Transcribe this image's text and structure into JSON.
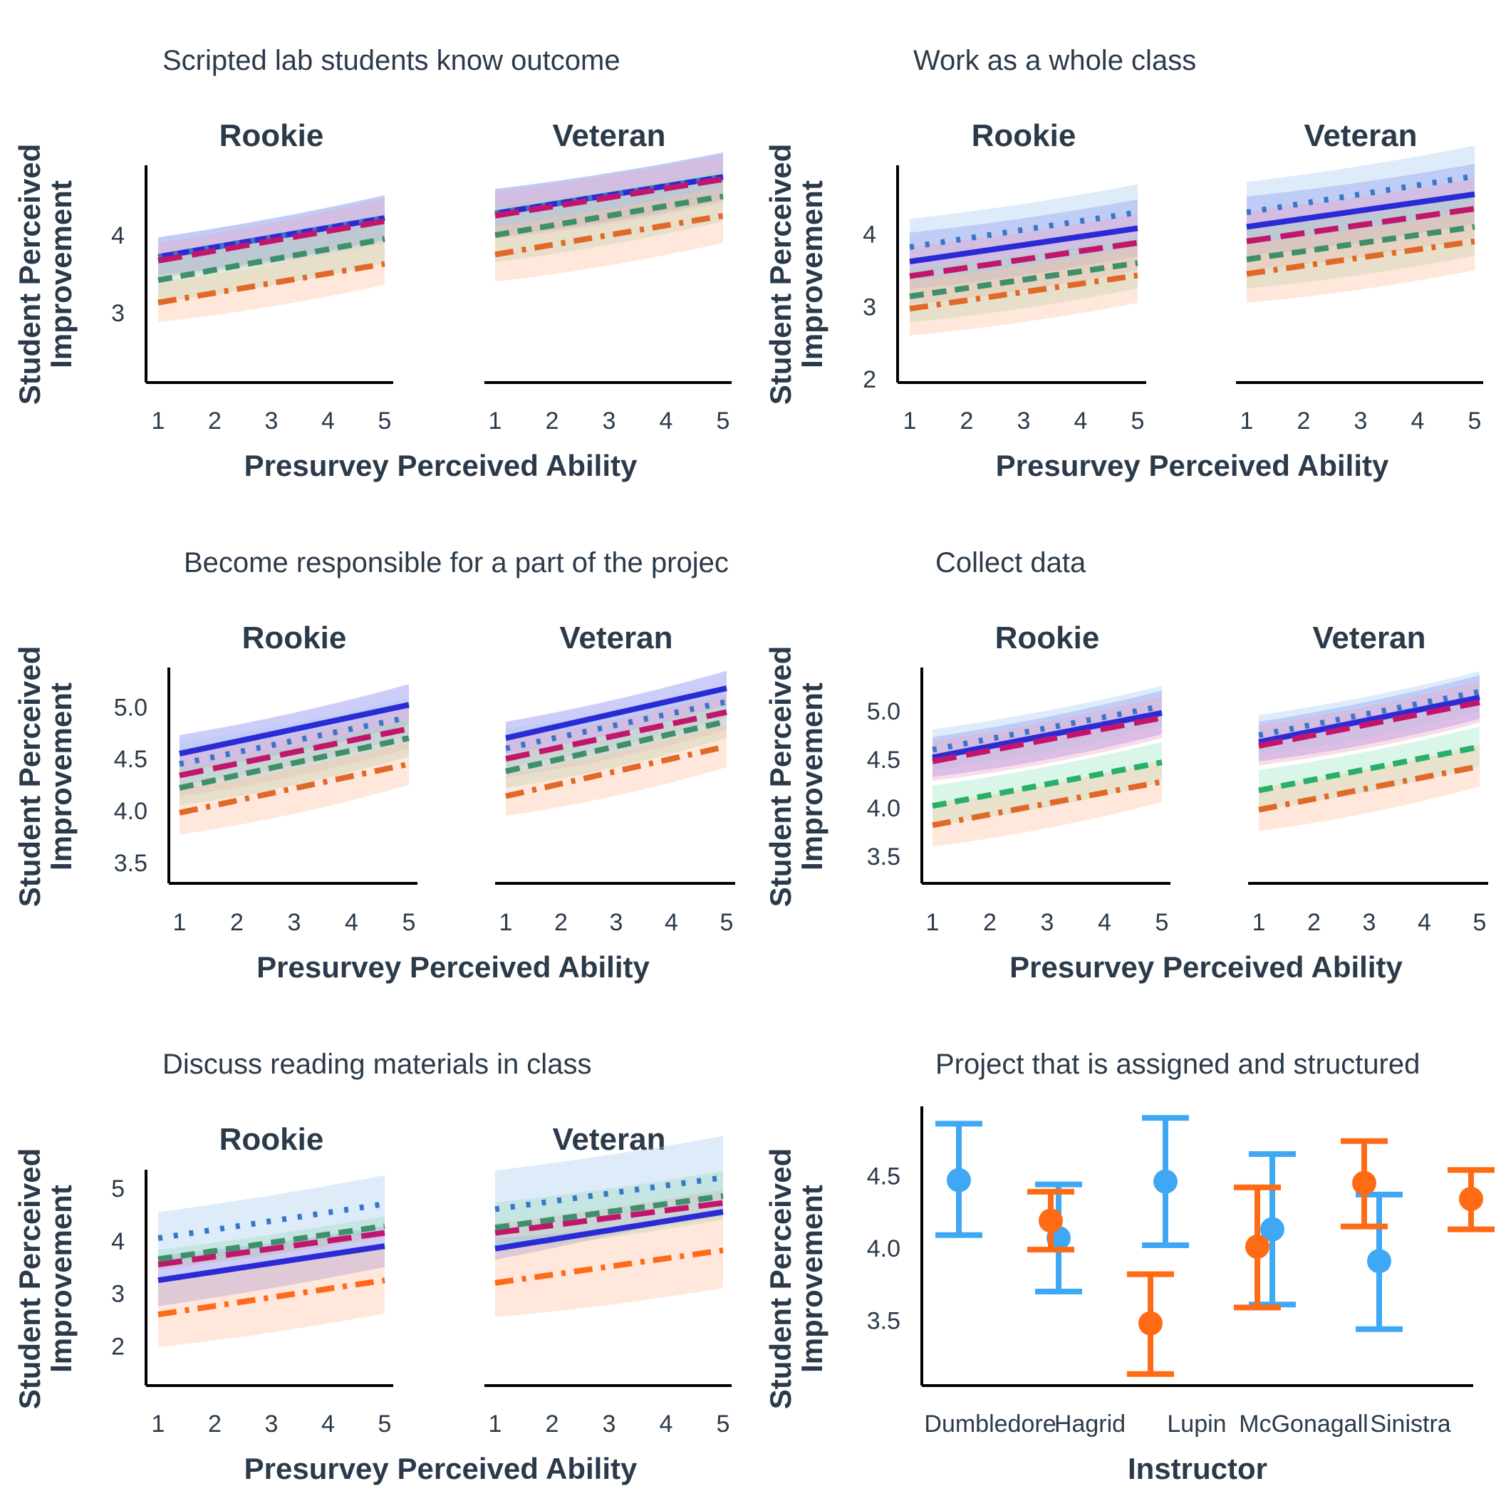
{
  "chart_data": [
    {
      "type": "line",
      "title": "Scripted lab students know outcome",
      "facets": [
        "Rookie",
        "Veteran"
      ],
      "xlabel": "Presurvey Perceived Ability",
      "ylabel": [
        "Student Perceived",
        "Improvement"
      ],
      "x_ticks": [
        1,
        2,
        3,
        4,
        5
      ],
      "y_ticks": [
        3,
        4
      ],
      "ylim": [
        2.1,
        4.9
      ],
      "series": [
        {
          "style": "solid",
          "color": "#2b2bd6",
          "band": "#7b7bf0",
          "panels": [
            [
              3.72,
              4.22,
              3.48,
              3.94,
              4.28,
              4.75,
              3.98,
              4.45
            ]
          ]
        },
        {
          "style": "dotted",
          "color": "#3a76c8",
          "band": "#a9cdf2",
          "panels": [
            [
              3.72,
              4.22,
              3.48,
              3.94,
              4.28,
              4.75,
              3.98,
              4.45
            ]
          ]
        },
        {
          "style": "longdash",
          "color": "#c2166d",
          "band": "#f2a3c6",
          "panels": [
            [
              3.67,
              4.18,
              3.45,
              3.9,
              4.25,
              4.72,
              3.95,
              4.42
            ]
          ]
        },
        {
          "style": "dash",
          "color": "#3f8f6a",
          "band": "#9ad9b7",
          "panels": [
            [
              3.42,
              3.95,
              3.14,
              3.64,
              4.0,
              4.5,
              3.65,
              4.18
            ]
          ]
        },
        {
          "style": "dashdot",
          "color": "#e0692a",
          "band": "#ffc3a0",
          "panels": [
            [
              3.13,
              3.63,
              2.88,
              3.36,
              3.75,
              4.25,
              3.4,
              3.9
            ]
          ]
        }
      ]
    },
    {
      "type": "line",
      "title": "Work as a whole class",
      "facets": [
        "Rookie",
        "Veteran"
      ],
      "xlabel": "Presurvey Perceived Ability",
      "ylabel": [
        "Student Perceived",
        "Improvement"
      ],
      "x_ticks": [
        1,
        2,
        3,
        4,
        5
      ],
      "y_ticks": [
        2,
        3,
        4
      ],
      "ylim": [
        1.95,
        4.95
      ],
      "series": [
        {
          "style": "solid",
          "color": "#2b2bd6",
          "band": "#7b7bf0",
          "panels": [
            [
              3.62,
              4.08,
              3.24,
              3.7,
              4.1,
              4.55,
              3.7,
              4.15
            ]
          ]
        },
        {
          "style": "dotted",
          "color": "#3a76c8",
          "band": "#a9cdf2",
          "panels": [
            [
              3.82,
              4.3,
              3.45,
              3.93,
              4.3,
              4.8,
              3.9,
              4.4
            ]
          ]
        },
        {
          "style": "longdash",
          "color": "#c2166d",
          "band": "#f2a3c6",
          "panels": [
            [
              3.42,
              3.88,
              3.03,
              3.5,
              3.9,
              4.35,
              3.5,
              3.95
            ]
          ]
        },
        {
          "style": "dash",
          "color": "#3f8f6a",
          "band": "#9ad9b7",
          "panels": [
            [
              3.14,
              3.6,
              2.78,
              3.25,
              3.65,
              4.1,
              3.25,
              3.7
            ]
          ]
        },
        {
          "style": "dashdot",
          "color": "#e0692a",
          "band": "#ffc3a0",
          "panels": [
            [
              2.97,
              3.43,
              2.6,
              3.05,
              3.45,
              3.9,
              3.05,
              3.5
            ]
          ]
        }
      ]
    },
    {
      "type": "line",
      "title": "Become responsible for a part of the projec",
      "facets": [
        "Rookie",
        "Veteran"
      ],
      "xlabel": "Presurvey Perceived Ability",
      "ylabel": [
        "Student Perceived",
        "Improvement"
      ],
      "x_ticks": [
        1,
        2,
        3,
        4,
        5
      ],
      "y_ticks": [
        "3.5",
        "4.0",
        "4.5",
        "5.0"
      ],
      "ylim": [
        3.3,
        5.38
      ],
      "series": [
        {
          "style": "solid",
          "color": "#2b2bd6",
          "band": "#7b7bf0",
          "panels": [
            [
              4.55,
              5.02,
              4.38,
              4.83,
              4.7,
              5.18,
              4.55,
              5.02
            ]
          ]
        },
        {
          "style": "dotted",
          "color": "#3a76c8",
          "band": "#a9cdf2",
          "panels": [
            [
              4.45,
              4.9,
              4.25,
              4.72,
              4.6,
              5.05,
              4.42,
              4.9
            ]
          ]
        },
        {
          "style": "longdash",
          "color": "#c2166d",
          "band": "#f2a3c6",
          "panels": [
            [
              4.34,
              4.79,
              4.14,
              4.6,
              4.5,
              4.95,
              4.32,
              4.78
            ]
          ]
        },
        {
          "style": "dash",
          "color": "#3f8f6a",
          "band": "#9ad9b7",
          "panels": [
            [
              4.22,
              4.7,
              4.05,
              4.52,
              4.38,
              4.86,
              4.22,
              4.7
            ]
          ]
        },
        {
          "style": "dashdot",
          "color": "#e0692a",
          "band": "#ffc3a0",
          "panels": [
            [
              3.98,
              4.45,
              3.77,
              4.25,
              4.14,
              4.62,
              3.95,
              4.42
            ]
          ]
        }
      ]
    },
    {
      "type": "line",
      "title": "Collect data",
      "facets": [
        "Rookie",
        "Veteran"
      ],
      "xlabel": "Presurvey Perceived Ability",
      "ylabel": [
        "Student Perceived",
        "Improvement"
      ],
      "x_ticks": [
        1,
        2,
        3,
        4,
        5
      ],
      "y_ticks": [
        "3.5",
        "4.0",
        "4.5",
        "5.0"
      ],
      "ylim": [
        3.22,
        5.45
      ],
      "series": [
        {
          "style": "solid",
          "color": "#2b2bd6",
          "band": "#7b7bf0",
          "panels": [
            [
              4.52,
              4.98,
              4.32,
              4.76,
              4.68,
              5.14,
              4.48,
              4.92
            ]
          ]
        },
        {
          "style": "dotted",
          "color": "#3a76c8",
          "band": "#a9cdf2",
          "panels": [
            [
              4.6,
              5.05,
              4.4,
              4.85,
              4.75,
              5.2,
              4.55,
              5.0
            ]
          ]
        },
        {
          "style": "longdash",
          "color": "#c2166d",
          "band": "#f2a3c6",
          "panels": [
            [
              4.48,
              4.93,
              4.28,
              4.72,
              4.64,
              5.09,
              4.44,
              4.88
            ]
          ]
        },
        {
          "style": "dash",
          "color": "#28b06a",
          "band": "#9fe8c6",
          "panels": [
            [
              4.02,
              4.47,
              3.82,
              4.27,
              4.18,
              4.63,
              3.98,
              4.43
            ]
          ]
        },
        {
          "style": "dashdot",
          "color": "#e0692a",
          "band": "#ffc3a0",
          "panels": [
            [
              3.82,
              4.27,
              3.6,
              4.06,
              3.98,
              4.43,
              3.76,
              4.22
            ]
          ]
        }
      ]
    },
    {
      "type": "line",
      "title": "Discuss reading materials in class",
      "facets": [
        "Rookie",
        "Veteran"
      ],
      "xlabel": "Presurvey Perceived Ability",
      "ylabel": [
        "Student Perceived",
        "Improvement"
      ],
      "x_ticks": [
        1,
        2,
        3,
        4,
        5
      ],
      "y_ticks": [
        2,
        3,
        4,
        5
      ],
      "ylim": [
        1.25,
        5.35
      ],
      "series": [
        {
          "style": "solid",
          "color": "#2b2bd6",
          "band": "#7b7bf0",
          "panels": [
            [
              3.25,
              3.9,
              3.72,
              4.28,
              3.85,
              4.55,
              4.05,
              4.5
            ]
          ]
        },
        {
          "style": "dotted",
          "color": "#3a76c8",
          "band": "#a9cdf2",
          "panels": [
            [
              4.05,
              4.7,
              3.58,
              4.18,
              4.6,
              5.2,
              3.9,
              4.45
            ]
          ]
        },
        {
          "style": "longdash",
          "color": "#c2166d",
          "band": "#f2a3c6",
          "panels": [
            [
              3.55,
              4.15,
              3.65,
              4.22,
              4.15,
              4.72,
              3.98,
              4.48
            ]
          ]
        },
        {
          "style": "dash",
          "color": "#3f8f6a",
          "band": "#9ad9b7",
          "panels": [
            [
              3.65,
              4.28,
              3.48,
              4.1,
              4.25,
              4.85,
              3.8,
              4.4
            ]
          ]
        },
        {
          "style": "dashdot",
          "color": "#ff6a1a",
          "band": "#ffc3a0",
          "panels": [
            [
              2.6,
              3.25,
              1.98,
              2.62,
              3.2,
              3.82,
              2.55,
              3.1
            ]
          ]
        }
      ]
    },
    {
      "type": "scatter",
      "title": "Project that is assigned and structured",
      "xlabel": "Instructor",
      "ylabel": [
        "Student Perceived",
        "Improvement"
      ],
      "categories": [
        "Dumbledore",
        "Hagrid",
        "Lupin",
        "McGonagall",
        "Sinistra"
      ],
      "y_ticks": [
        "3.5",
        "4.0",
        "4.5"
      ],
      "ylim": [
        3.05,
        4.98
      ],
      "series": [
        {
          "color": "#3ea8f5",
          "points": [
            [
              4.47,
              4.09,
              4.86
            ],
            [
              4.07,
              3.7,
              4.44
            ],
            [
              4.46,
              4.02,
              4.9
            ],
            [
              4.13,
              3.61,
              4.65
            ],
            [
              3.91,
              3.44,
              4.37
            ]
          ]
        },
        {
          "color": "#ff6a14",
          "points": [
            [
              4.19,
              3.99,
              4.39
            ],
            [
              3.48,
              3.13,
              3.82
            ],
            [
              4.01,
              3.59,
              4.42
            ],
            [
              4.45,
              4.15,
              4.74
            ],
            [
              4.34,
              4.13,
              4.54
            ]
          ]
        }
      ]
    }
  ]
}
